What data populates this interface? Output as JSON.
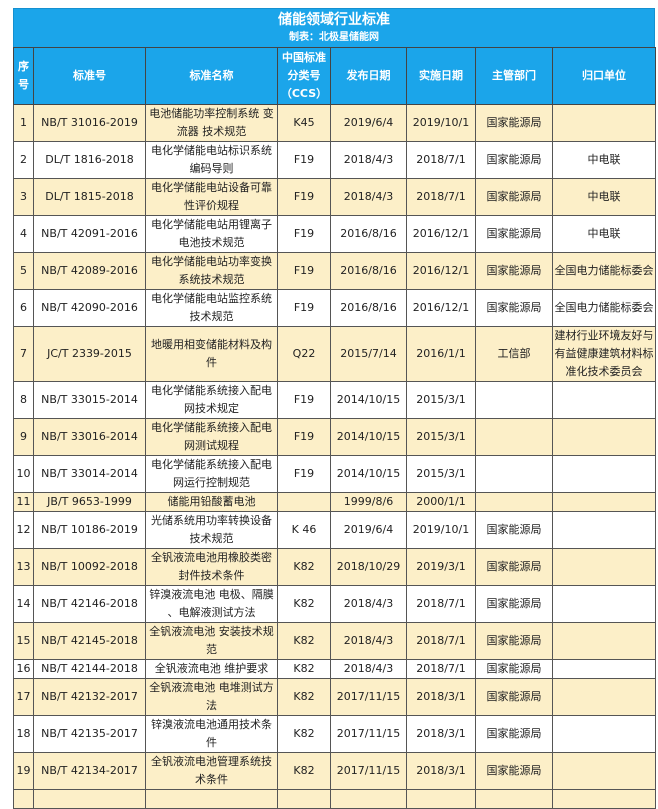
{
  "title": "储能领域行业标准",
  "subtitle": "制表：北极星储能网",
  "colors": {
    "header": "#1ba5ea",
    "row_alt": "#fcefc8"
  },
  "columns": [
    "序\n号",
    "标准号",
    "标准名称",
    "中国标准\n分类号\n（CCS）",
    "发布日期",
    "实施日期",
    "主管部门",
    "归口单位"
  ],
  "rows": [
    [
      "1",
      "NB/T 31016-2019",
      "电池储能功率控制系统 变\n流器 技术规范",
      "K45",
      "2019/6/4",
      "2019/10/1",
      "国家能源局",
      ""
    ],
    [
      "2",
      "DL/T 1816-2018",
      "电化学储能电站标识系统\n编码导则",
      "F19",
      "2018/4/3",
      "2018/7/1",
      "国家能源局",
      "中电联"
    ],
    [
      "3",
      "DL/T 1815-2018",
      "电化学储能电站设备可靠\n性评价规程",
      "F19",
      "2018/4/3",
      "2018/7/1",
      "国家能源局",
      "中电联"
    ],
    [
      "4",
      "NB/T 42091-2016",
      "电化学储能电站用锂离子\n电池技术规范",
      "F19",
      "2016/8/16",
      "2016/12/1",
      "国家能源局",
      "中电联"
    ],
    [
      "5",
      "NB/T 42089-2016",
      "电化学储能电站功率变换\n系统技术规范",
      "F19",
      "2016/8/16",
      "2016/12/1",
      "国家能源局",
      "全国电力储能标委会"
    ],
    [
      "6",
      "NB/T 42090-2016",
      "电化学储能电站监控系统\n技术规范",
      "F19",
      "2016/8/16",
      "2016/12/1",
      "国家能源局",
      "全国电力储能标委会"
    ],
    [
      "7",
      "JC/T 2339-2015",
      "地暖用相变储能材料及构\n件",
      "Q22",
      "2015/7/14",
      "2016/1/1",
      "工信部",
      "建材行业环境友好与\n有益健康建筑材料标\n准化技术委员会"
    ],
    [
      "8",
      "NB/T 33015-2014",
      "电化学储能系统接入配电\n网技术规定",
      "F19",
      "2014/10/15",
      "2015/3/1",
      "",
      ""
    ],
    [
      "9",
      "NB/T 33016-2014",
      "电化学储能系统接入配电\n网测试规程",
      "F19",
      "2014/10/15",
      "2015/3/1",
      "",
      ""
    ],
    [
      "10",
      "NB/T 33014-2014",
      "电化学储能系统接入配电\n网运行控制规范",
      "F19",
      "2014/10/15",
      "2015/3/1",
      "",
      ""
    ],
    [
      "11",
      "JB/T 9653-1999",
      "储能用铅酸蓄电池",
      "",
      "1999/8/6",
      "2000/1/1",
      "",
      ""
    ],
    [
      "12",
      "NB/T 10186-2019",
      "光储系统用功率转换设备\n技术规范",
      "K 46",
      "2019/6/4",
      "2019/10/1",
      "国家能源局",
      ""
    ],
    [
      "13",
      "NB/T 10092-2018",
      "全钒液流电池用橡胶类密\n封件技术条件",
      "K82",
      "2018/10/29",
      "2019/3/1",
      "国家能源局",
      ""
    ],
    [
      "14",
      "NB/T 42146-2018",
      "锌溴液流电池 电极、隔膜\n、电解液测试方法",
      "K82",
      "2018/4/3",
      "2018/7/1",
      "国家能源局",
      ""
    ],
    [
      "15",
      "NB/T 42145-2018",
      "全钒液流电池 安装技术规\n范",
      "K82",
      "2018/4/3",
      "2018/7/1",
      "国家能源局",
      ""
    ],
    [
      "16",
      "NB/T 42144-2018",
      "全钒液流电池 维护要求",
      "K82",
      "2018/4/3",
      "2018/7/1",
      "国家能源局",
      ""
    ],
    [
      "17",
      "NB/T 42132-2017",
      "全钒液流电池 电堆测试方\n法",
      "K82",
      "2017/11/15",
      "2018/3/1",
      "国家能源局",
      ""
    ],
    [
      "18",
      "NB/T 42135-2017",
      "锌溴液流电池通用技术条\n件",
      "K82",
      "2017/11/15",
      "2018/3/1",
      "国家能源局",
      ""
    ],
    [
      "19",
      "NB/T 42134-2017",
      "全钒液流电池管理系统技\n术条件",
      "K82",
      "2017/11/15",
      "2018/3/1",
      "国家能源局",
      ""
    ]
  ]
}
